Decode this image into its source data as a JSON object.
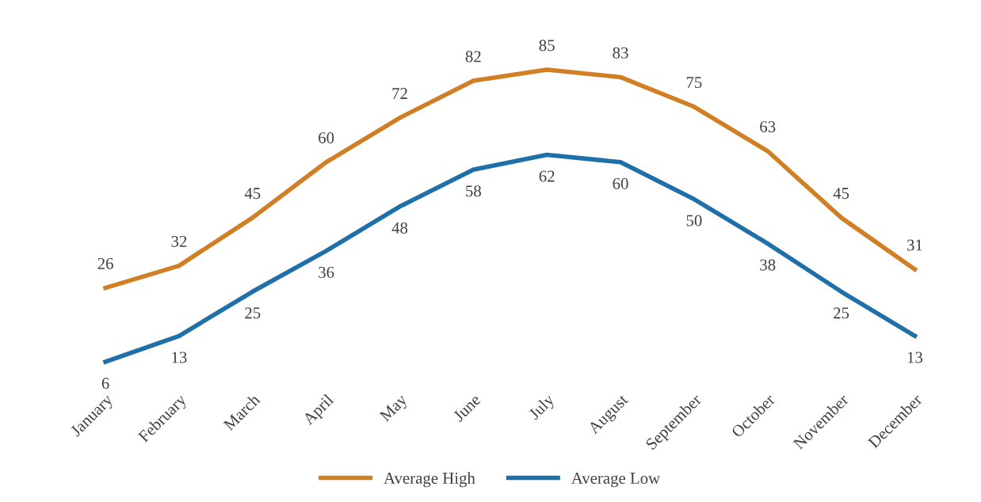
{
  "chart_data": {
    "type": "line",
    "categories": [
      "January",
      "February",
      "March",
      "April",
      "May",
      "June",
      "July",
      "August",
      "September",
      "October",
      "November",
      "December"
    ],
    "series": [
      {
        "name": "Average High",
        "color": "#d07f24",
        "values": [
          26,
          32,
          45,
          60,
          72,
          82,
          85,
          83,
          75,
          63,
          45,
          31
        ]
      },
      {
        "name": "Average Low",
        "color": "#1f6fa8",
        "values": [
          6,
          13,
          25,
          36,
          48,
          58,
          62,
          60,
          50,
          38,
          25,
          13
        ]
      }
    ],
    "data_labels": true,
    "legend": "bottom",
    "grid": false,
    "marker": "none",
    "line_style": "solid",
    "tick_labels": "x"
  }
}
